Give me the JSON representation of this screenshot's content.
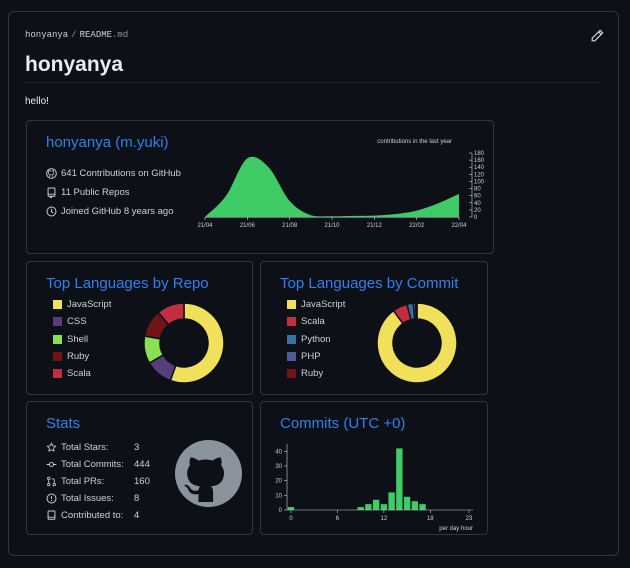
{
  "breadcrumb": {
    "user": "honyanya",
    "separator": "/",
    "file": "README",
    "ext": ".md"
  },
  "readme": {
    "title": "honyanya",
    "greeting": "hello!"
  },
  "profile_card": {
    "title": "honyanya (m.yuki)",
    "contributions": "641 Contributions on GitHub",
    "repos": "11 Public Repos",
    "joined": "Joined GitHub 8 years ago",
    "chart_caption": "contributions in the last year"
  },
  "lang_repo_card": {
    "title": "Top Languages by Repo",
    "items": [
      {
        "name": "JavaScript",
        "color": "#f1e05a",
        "value": 5
      },
      {
        "name": "CSS",
        "color": "#563d7c",
        "value": 1
      },
      {
        "name": "Shell",
        "color": "#89e051",
        "value": 1
      },
      {
        "name": "Ruby",
        "color": "#701516",
        "value": 1
      },
      {
        "name": "Scala",
        "color": "#c22d40",
        "value": 1
      }
    ]
  },
  "lang_commit_card": {
    "title": "Top Languages by Commit",
    "items": [
      {
        "name": "JavaScript",
        "color": "#f1e05a",
        "value": 90
      },
      {
        "name": "Scala",
        "color": "#c22d40",
        "value": 6
      },
      {
        "name": "Python",
        "color": "#3572a5",
        "value": 2.5
      },
      {
        "name": "PHP",
        "color": "#4f5d95",
        "value": 1
      },
      {
        "name": "Ruby",
        "color": "#701516",
        "value": 0.5
      }
    ]
  },
  "stats_card": {
    "title": "Stats",
    "rows": [
      {
        "label": "Total Stars:",
        "value": "3",
        "icon": "star-icon"
      },
      {
        "label": "Total Commits:",
        "value": "444",
        "icon": "commit-icon"
      },
      {
        "label": "Total PRs:",
        "value": "160",
        "icon": "pull-request-icon"
      },
      {
        "label": "Total Issues:",
        "value": "8",
        "icon": "issue-icon"
      },
      {
        "label": "Contributed to:",
        "value": "4",
        "icon": "repo-icon"
      }
    ]
  },
  "commits_card": {
    "title": "Commits (UTC +0)",
    "xlabel": "per day hour"
  },
  "chart_data": [
    {
      "type": "area",
      "title": "contributions in the last year",
      "x": [
        "21/04",
        "21/05",
        "21/06",
        "21/07",
        "21/08",
        "21/09",
        "21/10",
        "21/11",
        "21/12",
        "22/01",
        "22/02",
        "22/03",
        "22/04"
      ],
      "values": [
        0,
        60,
        165,
        140,
        45,
        5,
        2,
        3,
        4,
        8,
        18,
        38,
        65
      ],
      "xticks": [
        "21/04",
        "21/06",
        "21/08",
        "21/10",
        "21/12",
        "22/02",
        "22/04"
      ],
      "yticks": [
        0,
        20,
        40,
        60,
        80,
        100,
        120,
        140,
        160,
        180
      ],
      "ylim": [
        0,
        180
      ],
      "color": "#3fcc66"
    },
    {
      "type": "bar",
      "title": "Commits (UTC +0)",
      "xlabel": "per day hour",
      "x": [
        0,
        1,
        2,
        3,
        4,
        5,
        6,
        7,
        8,
        9,
        10,
        11,
        12,
        13,
        14,
        15,
        16,
        17,
        18,
        19,
        20,
        21,
        22,
        23
      ],
      "values": [
        2,
        0,
        0,
        0,
        0,
        0,
        0,
        0,
        0,
        2,
        4,
        7,
        4,
        12,
        42,
        9,
        6,
        4,
        0,
        0,
        0,
        0,
        0,
        0
      ],
      "xticks": [
        0,
        6,
        12,
        18,
        23
      ],
      "yticks": [
        0,
        10,
        20,
        30,
        40
      ],
      "ylim": [
        0,
        45
      ],
      "color": "#3fcc66"
    }
  ]
}
